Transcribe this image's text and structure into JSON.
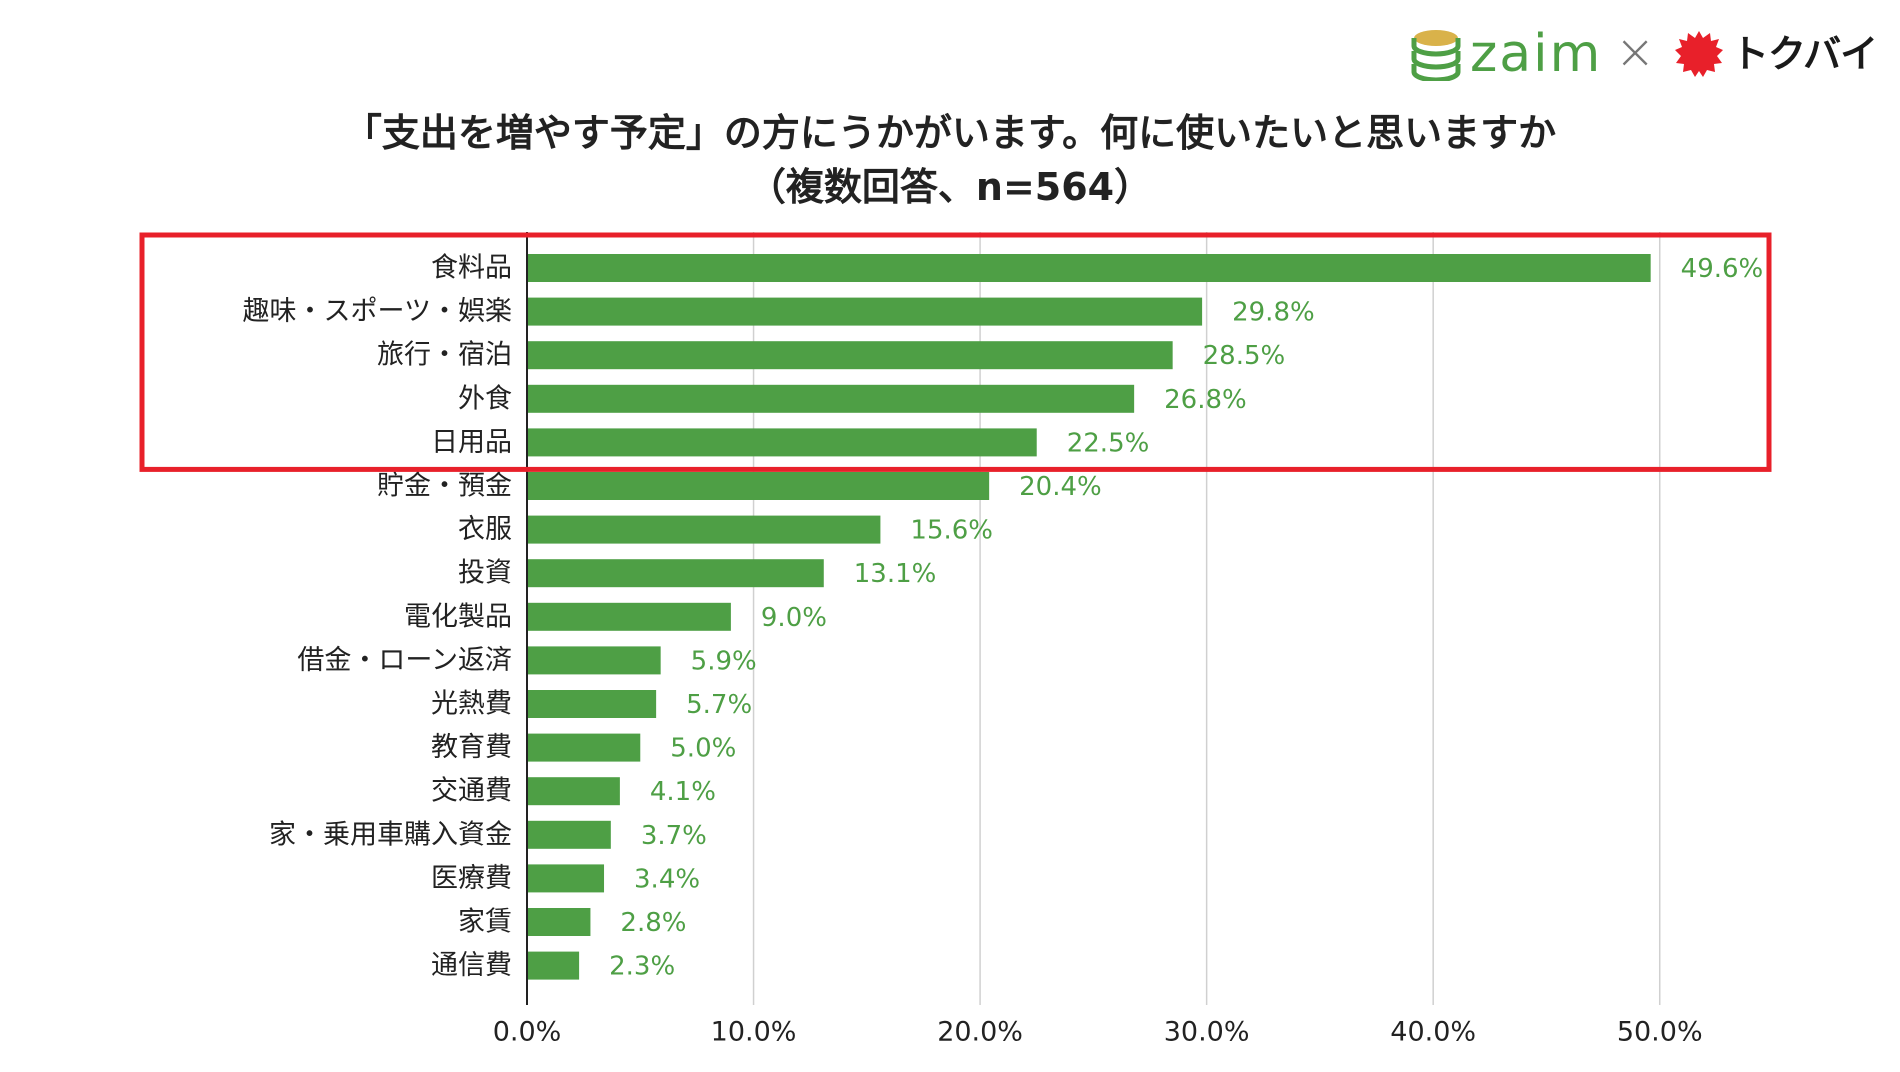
{
  "logos": {
    "zaim": "zaim",
    "times": "×",
    "tokubai": "トクバイ"
  },
  "colors": {
    "bar": "#4e9f45",
    "highlight": "#e8202a",
    "text": "#222222",
    "grid": "#d0d0d0"
  },
  "chart_data": {
    "type": "bar",
    "orientation": "horizontal",
    "title": "「支出を増やす予定」の方にうかがいます。何に使いたいと思いますか",
    "subtitle": "（複数回答、n=564）",
    "categories": [
      "食料品",
      "趣味・スポーツ・娯楽",
      "旅行・宿泊",
      "外食",
      "日用品",
      "貯金・預金",
      "衣服",
      "投資",
      "電化製品",
      "借金・ローン返済",
      "光熱費",
      "教育費",
      "交通費",
      "家・乗用車購入資金",
      "医療費",
      "家賃",
      "通信費"
    ],
    "values": [
      49.6,
      29.8,
      28.5,
      26.8,
      22.5,
      20.4,
      15.6,
      13.1,
      9.0,
      5.9,
      5.7,
      5.0,
      4.1,
      3.7,
      3.4,
      2.8,
      2.3
    ],
    "value_labels": [
      "49.6%",
      "29.8%",
      "28.5%",
      "26.8%",
      "22.5%",
      "20.4%",
      "15.6%",
      "13.1%",
      "9.0%",
      "5.9%",
      "5.7%",
      "5.0%",
      "4.1%",
      "3.7%",
      "3.4%",
      "2.8%",
      "2.3%"
    ],
    "x_ticks": [
      0,
      10,
      20,
      30,
      40,
      50
    ],
    "x_tick_labels": [
      "0.0%",
      "10.0%",
      "20.0%",
      "30.0%",
      "40.0%",
      "50.0%"
    ],
    "xlim": [
      0,
      55
    ],
    "grid": true,
    "highlight_categories": [
      "食料品",
      "趣味・スポーツ・娯楽",
      "旅行・宿泊",
      "外食",
      "日用品"
    ]
  }
}
